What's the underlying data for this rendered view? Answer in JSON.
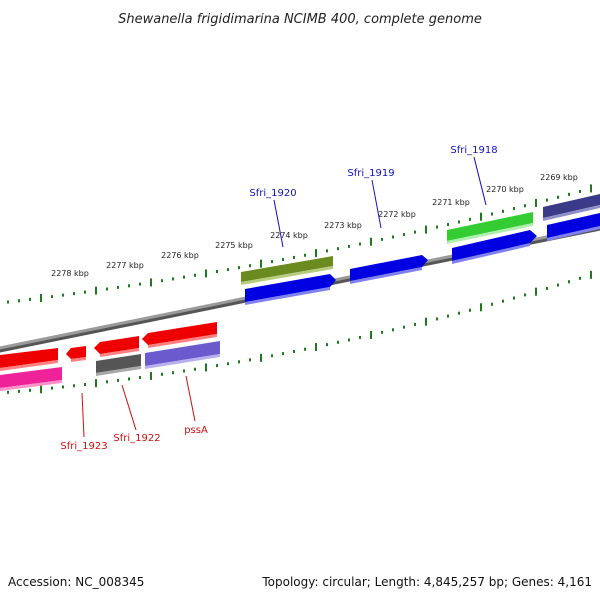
{
  "title": "Shewanella frigidimarina NCIMB 400, complete genome",
  "footer": {
    "accession": "Accession: NC_008345",
    "summary": "Topology: circular; Length: 4,845,257 bp; Genes: 4,161"
  },
  "tick_labels": [
    "2278 kbp",
    "2277 kbp",
    "2276 kbp",
    "2275 kbp",
    "2274 kbp",
    "2273 kbp",
    "2272 kbp",
    "2271 kbp",
    "2270 kbp",
    "2269 kbp"
  ],
  "gene_labels": {
    "top": [
      "Sfri_1920",
      "Sfri_1919",
      "Sfri_1918"
    ],
    "bottom": [
      "Sfri_1923",
      "Sfri_1922",
      "pssA"
    ]
  },
  "colors": {
    "backbone": "#8a8a8a",
    "tick": "#1f7a1f",
    "forward_label": "#1010c0",
    "reverse_label": "#cc1010",
    "red": "#ee0000",
    "blue": "#0000e0",
    "green": "#33cc33",
    "olive": "#6b8a20",
    "navy": "#3a3a88",
    "gray": "#555555",
    "lavender": "#6a5acd",
    "magenta": "#ee2299"
  }
}
